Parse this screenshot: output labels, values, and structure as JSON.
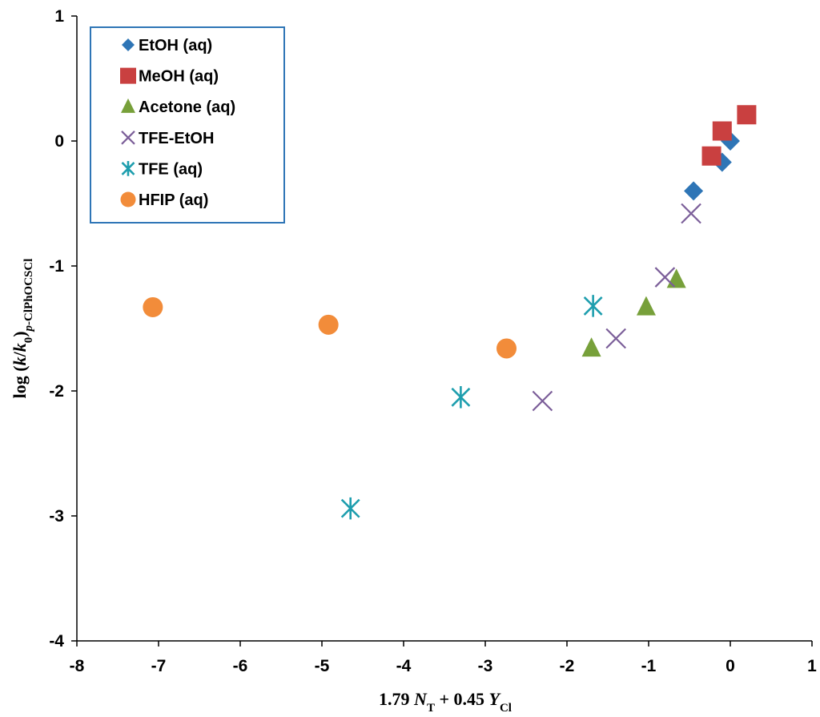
{
  "chart_data": {
    "type": "scatter",
    "title": "",
    "xlabel": "1.79 N_T + 0.45 Y_Cl",
    "xlabel_parts": {
      "coef1": "1.79 ",
      "var1": "N",
      "sub1": "T",
      "mid": " + 0.45 ",
      "var2": "Y",
      "sub2": "Cl"
    },
    "ylabel": "log (k/k0)p-ClPhOCSCl",
    "ylabel_parts": {
      "pre": "log (",
      "k": "k",
      "slash": "/",
      "k0": "k",
      "k0sub": "0",
      "close": ")",
      "sub_italic": "p",
      "sub_rest": "-ClPhOCSCl"
    },
    "xlim": [
      -8,
      1
    ],
    "ylim": [
      -4,
      1
    ],
    "xticks": [
      -8,
      -7,
      -6,
      -5,
      -4,
      -3,
      -2,
      -1,
      0,
      1
    ],
    "yticks": [
      -4,
      -3,
      -2,
      -1,
      0,
      1
    ],
    "legend_position": "top-left",
    "grid": false,
    "series": [
      {
        "name": "EtOH (aq)",
        "marker": "diamond",
        "color": "#2E75B6",
        "x": [
          0.0,
          -0.1,
          -0.45
        ],
        "y": [
          0.0,
          -0.17,
          -0.4
        ]
      },
      {
        "name": "MeOH (aq)",
        "marker": "square",
        "color": "#C94040",
        "x": [
          0.2,
          -0.1,
          -0.23
        ],
        "y": [
          0.21,
          0.08,
          -0.12
        ]
      },
      {
        "name": "Acetone (aq)",
        "marker": "triangle",
        "color": "#77A03A",
        "x": [
          -0.66,
          -1.03,
          -1.7
        ],
        "y": [
          -1.11,
          -1.33,
          -1.66
        ]
      },
      {
        "name": "TFE-EtOH",
        "marker": "x",
        "color": "#7B5E99",
        "x": [
          -0.48,
          -0.8,
          -1.4,
          -2.3
        ],
        "y": [
          -0.58,
          -1.09,
          -1.58,
          -2.08
        ]
      },
      {
        "name": "TFE (aq)",
        "marker": "asterisk",
        "color": "#1E9EAE",
        "x": [
          -1.68,
          -3.3,
          -4.65
        ],
        "y": [
          -1.32,
          -2.05,
          -2.94
        ]
      },
      {
        "name": "HFIP (aq)",
        "marker": "circle",
        "color": "#F28C3A",
        "x": [
          -7.07,
          -4.92,
          -2.74
        ],
        "y": [
          -1.33,
          -1.47,
          -1.66
        ]
      }
    ]
  }
}
